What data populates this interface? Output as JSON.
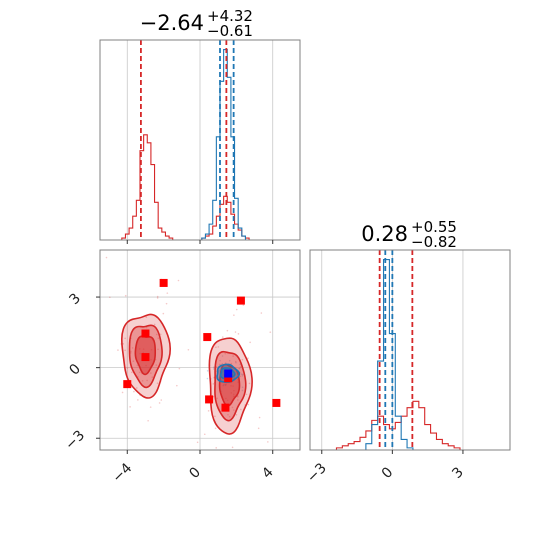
{
  "colors": {
    "red": "#d62728",
    "blue": "#1f77b4",
    "marker_red": "#ff0000",
    "marker_blue": "#0000ff",
    "grid": "#c8c8c8",
    "frame": "#808080"
  },
  "chart_data": [
    {
      "type": "histogram",
      "panel": "top-left",
      "parameter_index": 0,
      "title": {
        "median": "−2.64",
        "upper": "+4.32",
        "lower": "−0.61"
      },
      "xlim": [
        -5.5,
        5.5
      ],
      "xticks": [
        -4,
        0,
        4
      ],
      "grid": true,
      "series": [
        {
          "name": "",
          "color": "#d62728",
          "x": [
            -4.4,
            -4.2,
            -4.0,
            -3.8,
            -3.6,
            -3.4,
            -3.2,
            -3.0,
            -2.8,
            -2.6,
            -2.4,
            -2.2,
            -2.0,
            -1.8,
            -1.6,
            -1.4,
            -1.2,
            -1.0,
            -0.8,
            -0.6,
            -0.4,
            -0.2,
            0.0,
            0.2,
            0.4,
            0.6,
            0.8,
            1.0,
            1.2,
            1.4,
            1.6,
            1.8,
            2.0,
            2.2,
            2.4,
            2.6,
            2.8,
            3.0
          ],
          "counts": [
            0.0,
            0.01,
            0.03,
            0.06,
            0.12,
            0.2,
            0.45,
            0.53,
            0.49,
            0.38,
            0.19,
            0.06,
            0.04,
            0.02,
            0.01,
            0.0,
            0.0,
            0.0,
            0.0,
            0.0,
            0.0,
            0.0,
            0.0,
            0.01,
            0.02,
            0.03,
            0.07,
            0.12,
            0.18,
            0.22,
            0.19,
            0.13,
            0.08,
            0.05,
            0.02,
            0.01,
            0.0,
            0.0
          ]
        },
        {
          "name": "",
          "color": "#1f77b4",
          "x": [
            0.0,
            0.2,
            0.4,
            0.6,
            0.8,
            1.0,
            1.2,
            1.4,
            1.6,
            1.8,
            2.0,
            2.2,
            2.4,
            2.6,
            2.8
          ],
          "counts": [
            0.0,
            0.01,
            0.03,
            0.08,
            0.2,
            0.52,
            0.8,
            0.96,
            0.82,
            0.52,
            0.21,
            0.06,
            0.02,
            0.0,
            0.0
          ]
        }
      ],
      "vlines": [
        {
          "x": -3.25,
          "color": "#d62728"
        },
        {
          "x": 1.1,
          "color": "#1f77b4"
        },
        {
          "x": 1.45,
          "color": "#d62728"
        },
        {
          "x": 1.85,
          "color": "#1f77b4"
        }
      ]
    },
    {
      "type": "scatter",
      "panel": "bottom-left",
      "xlim": [
        -5.5,
        5.5
      ],
      "ylim": [
        -3.5,
        5.0
      ],
      "xticks": [
        -4,
        0,
        4
      ],
      "yticks": [
        -3,
        0,
        3
      ],
      "grid": true,
      "contours": [
        {
          "color": "#d62728",
          "center": [
            -3.0,
            0.6
          ],
          "levels": [
            {
              "rx": 1.3,
              "ry": 1.75,
              "opacity": 0.22
            },
            {
              "rx": 0.9,
              "ry": 1.3,
              "opacity": 0.35
            },
            {
              "rx": 0.55,
              "ry": 0.8,
              "opacity": 0.5
            }
          ]
        },
        {
          "color": "#d62728",
          "center": [
            1.6,
            -0.7
          ],
          "levels": [
            {
              "rx": 1.15,
              "ry": 2.05,
              "opacity": 0.22
            },
            {
              "rx": 0.85,
              "ry": 1.45,
              "opacity": 0.35
            },
            {
              "rx": 0.55,
              "ry": 0.85,
              "opacity": 0.5
            }
          ]
        },
        {
          "color": "#1f77b4",
          "center": [
            1.5,
            -0.25
          ],
          "levels": [
            {
              "rx": 0.6,
              "ry": 0.38,
              "opacity": 0.35
            },
            {
              "rx": 0.38,
              "ry": 0.24,
              "opacity": 0.5
            }
          ]
        }
      ],
      "markers": [
        {
          "x": -2.0,
          "y": 3.6,
          "color": "#ff0000"
        },
        {
          "x": 2.25,
          "y": 2.85,
          "color": "#ff0000"
        },
        {
          "x": -3.0,
          "y": 1.45,
          "color": "#ff0000"
        },
        {
          "x": 0.4,
          "y": 1.3,
          "color": "#ff0000"
        },
        {
          "x": -3.0,
          "y": 0.45,
          "color": "#ff0000"
        },
        {
          "x": -4.0,
          "y": -0.7,
          "color": "#ff0000"
        },
        {
          "x": 0.5,
          "y": -1.35,
          "color": "#ff0000"
        },
        {
          "x": 1.4,
          "y": -1.7,
          "color": "#ff0000"
        },
        {
          "x": 4.2,
          "y": -1.5,
          "color": "#ff0000"
        },
        {
          "x": 1.55,
          "y": -0.45,
          "color": "#ff0000"
        },
        {
          "x": 1.55,
          "y": -0.25,
          "color": "#0000ff"
        }
      ]
    },
    {
      "type": "histogram",
      "panel": "bottom-right",
      "parameter_index": 1,
      "title": {
        "median": "0.28",
        "upper": "+0.55",
        "lower": "−0.82"
      },
      "xlim": [
        -3.5,
        5.0
      ],
      "xticks": [
        -3,
        0,
        3
      ],
      "grid": true,
      "series": [
        {
          "name": "",
          "color": "#d62728",
          "x": [
            -2.5,
            -2.25,
            -2.0,
            -1.75,
            -1.5,
            -1.25,
            -1.0,
            -0.75,
            -0.5,
            -0.25,
            0.0,
            0.25,
            0.5,
            0.75,
            1.0,
            1.25,
            1.5,
            1.75,
            2.0,
            2.25,
            2.5,
            2.75,
            3.0
          ],
          "counts": [
            0.0,
            0.01,
            0.02,
            0.03,
            0.04,
            0.06,
            0.09,
            0.14,
            0.16,
            0.12,
            0.1,
            0.13,
            0.16,
            0.2,
            0.23,
            0.2,
            0.12,
            0.08,
            0.05,
            0.03,
            0.02,
            0.01,
            0.0
          ]
        },
        {
          "name": "",
          "color": "#1f77b4",
          "x": [
            -1.25,
            -1.0,
            -0.75,
            -0.5,
            -0.25,
            0.0,
            0.25,
            0.5,
            0.75,
            1.0
          ],
          "counts": [
            0.0,
            0.03,
            0.12,
            0.42,
            0.9,
            0.55,
            0.16,
            0.05,
            0.01,
            0.0
          ]
        }
      ],
      "vlines": [
        {
          "x": -0.54,
          "color": "#d62728"
        },
        {
          "x": -0.3,
          "color": "#1f77b4"
        },
        {
          "x": 0.0,
          "color": "#1f77b4"
        },
        {
          "x": 0.85,
          "color": "#d62728"
        }
      ]
    }
  ]
}
